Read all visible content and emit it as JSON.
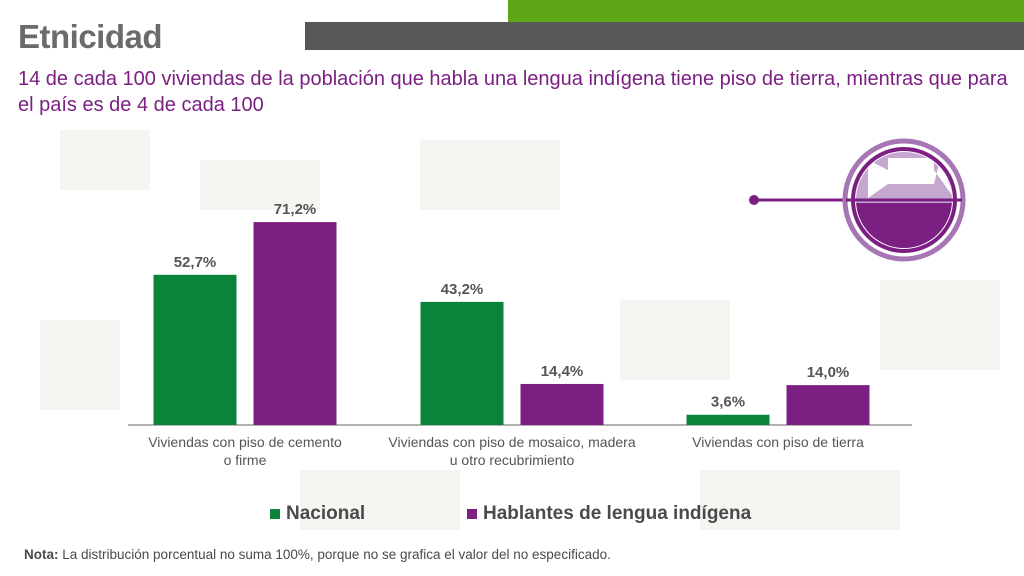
{
  "header": {
    "title": "Etnicidad",
    "subtitle": "14 de cada 100 viviendas de la población que habla una lengua indígena tiene piso de tierra, mientras que para el país es de 4 de cada 100"
  },
  "chart_data": {
    "type": "bar",
    "categories": [
      [
        "Viviendas con piso de cemento",
        "o firme"
      ],
      [
        "Viviendas con piso de mosaico, madera",
        "u otro recubrimiento"
      ],
      [
        "Viviendas con piso de tierra"
      ]
    ],
    "series": [
      {
        "name": "Nacional",
        "values": [
          52.7,
          43.2,
          3.6
        ],
        "labels": [
          "52,7%",
          "43,2%",
          "3,6%"
        ],
        "color": "#0b833a"
      },
      {
        "name": "Hablantes de lengua indígena",
        "values": [
          71.2,
          14.4,
          14.0
        ],
        "labels": [
          "71,2%",
          "14,4%",
          "14,0%"
        ],
        "color": "#7b2082"
      }
    ],
    "ylim": [
      0,
      100
    ],
    "grid": false,
    "legend": "bottom"
  },
  "legend_items": [
    {
      "label": "Nacional",
      "color": "#0b833a"
    },
    {
      "label": "Hablantes de lengua indígena",
      "color": "#7b2082"
    }
  ],
  "note": {
    "label": "Nota:",
    "text": " La distribución porcentual no suma 100%, porque no se grafica el valor del no especificado."
  },
  "icons": {
    "floor": "floor-icon"
  },
  "colors": {
    "accent_green": "#5ea518",
    "purple": "#7b2082",
    "bar_green": "#0b833a"
  }
}
